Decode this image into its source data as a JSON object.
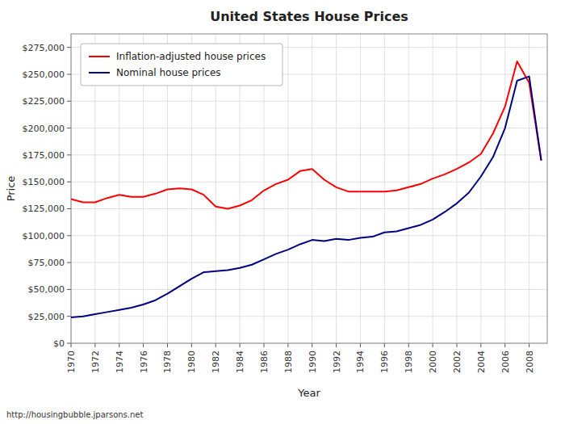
{
  "chart_data": {
    "type": "line",
    "title": "United States House Prices",
    "xlabel": "Year",
    "ylabel": "Price",
    "annotations": [
      "http://housingbubble.jparsons.net"
    ],
    "x": [
      1970,
      1971,
      1972,
      1973,
      1974,
      1975,
      1976,
      1977,
      1978,
      1979,
      1980,
      1981,
      1982,
      1983,
      1984,
      1985,
      1986,
      1987,
      1988,
      1989,
      1990,
      1991,
      1992,
      1993,
      1994,
      1995,
      1996,
      1997,
      1998,
      1999,
      2000,
      2001,
      2002,
      2003,
      2004,
      2005,
      2006,
      2007,
      2008,
      2009
    ],
    "series": [
      {
        "name": "Inflation-adjusted house prices",
        "color": "#ff0000",
        "values": [
          134000,
          131000,
          131000,
          135000,
          138000,
          136000,
          136000,
          139000,
          143000,
          144000,
          143000,
          138000,
          127000,
          125000,
          128000,
          133000,
          142000,
          148000,
          152000,
          160000,
          162000,
          152000,
          145000,
          141000,
          141000,
          141000,
          141000,
          142000,
          145000,
          148000,
          153000,
          157000,
          162000,
          168000,
          176000,
          195000,
          220000,
          262000,
          242000,
          170000
        ]
      },
      {
        "name": "Nominal house prices",
        "color": "#000080",
        "values": [
          24000,
          25000,
          27000,
          29000,
          31000,
          33000,
          36000,
          40000,
          46000,
          53000,
          60000,
          66000,
          67000,
          68000,
          70000,
          73000,
          78000,
          83000,
          87000,
          92000,
          96000,
          95000,
          97000,
          96000,
          98000,
          99000,
          103000,
          104000,
          107000,
          110000,
          115000,
          122000,
          130000,
          140000,
          155000,
          173000,
          200000,
          244000,
          248000,
          170000
        ]
      }
    ],
    "xlim": [
      1970,
      2009.5
    ],
    "xticks": [
      1970,
      1972,
      1974,
      1976,
      1978,
      1980,
      1982,
      1984,
      1986,
      1988,
      1990,
      1992,
      1994,
      1996,
      1998,
      2000,
      2002,
      2004,
      2006,
      2008
    ],
    "ylim": [
      0,
      287500
    ],
    "yticks": [
      {
        "value": 0,
        "label": "$0"
      },
      {
        "value": 25000,
        "label": "$25,000"
      },
      {
        "value": 50000,
        "label": "$50,000"
      },
      {
        "value": 75000,
        "label": "$75,000"
      },
      {
        "value": 100000,
        "label": "$100,000"
      },
      {
        "value": 125000,
        "label": "$125,000"
      },
      {
        "value": 150000,
        "label": "$150,000"
      },
      {
        "value": 175000,
        "label": "$175,000"
      },
      {
        "value": 200000,
        "label": "$200,000"
      },
      {
        "value": 225000,
        "label": "$225,000"
      },
      {
        "value": 250000,
        "label": "$250,000"
      },
      {
        "value": 275000,
        "label": "$275,000"
      }
    ],
    "grid": true,
    "legend": "upper left"
  }
}
